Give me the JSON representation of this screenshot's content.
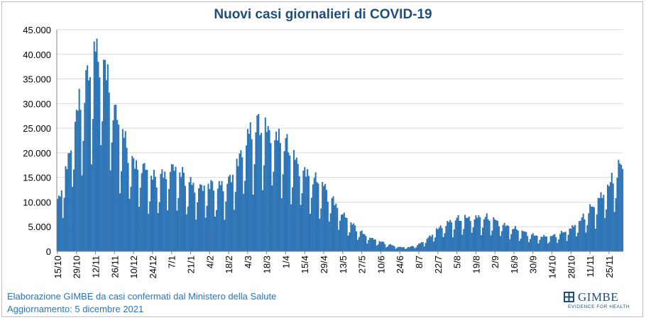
{
  "chart_data": {
    "type": "bar",
    "title": "Nuovi casi giornalieri di COVID-19",
    "xlabel": "",
    "ylabel": "",
    "ylim": [
      0,
      45000
    ],
    "yticks": [
      "0",
      "5.000",
      "10.000",
      "15.000",
      "20.000",
      "25.000",
      "30.000",
      "35.000",
      "40.000",
      "45.000"
    ],
    "xticks": [
      "15/10",
      "29/10",
      "12/11",
      "26/11",
      "10/12",
      "24/12",
      "7/1",
      "21/1",
      "4/2",
      "18/2",
      "4/3",
      "18/3",
      "1/4",
      "15/4",
      "29/4",
      "13/5",
      "27/5",
      "10/6",
      "24/6",
      "8/7",
      "22/7",
      "5/8",
      "19/8",
      "2/9",
      "16/9",
      "30/9",
      "14/10",
      "28/10",
      "11/11",
      "25/11"
    ],
    "grid": true,
    "bar_color": "#2e75b6",
    "x_start": "2020-10-15",
    "x_end": "2021-12-05",
    "weekly_anchors": [
      [
        "2020-10-15",
        8800
      ],
      [
        "2020-10-22",
        16000
      ],
      [
        "2020-10-29",
        26000
      ],
      [
        "2020-11-05",
        31000
      ],
      [
        "2020-11-12",
        37500
      ],
      [
        "2020-11-19",
        35000
      ],
      [
        "2020-11-26",
        26000
      ],
      [
        "2020-12-03",
        21000
      ],
      [
        "2020-12-10",
        16500
      ],
      [
        "2020-12-17",
        16000
      ],
      [
        "2020-12-24",
        13500
      ],
      [
        "2020-12-31",
        14000
      ],
      [
        "2021-01-07",
        16000
      ],
      [
        "2021-01-14",
        14500
      ],
      [
        "2021-01-21",
        12500
      ],
      [
        "2021-01-28",
        12000
      ],
      [
        "2021-02-04",
        12500
      ],
      [
        "2021-02-11",
        12000
      ],
      [
        "2021-02-18",
        13000
      ],
      [
        "2021-02-25",
        17000
      ],
      [
        "2021-03-04",
        21500
      ],
      [
        "2021-03-11",
        23500
      ],
      [
        "2021-03-18",
        23000
      ],
      [
        "2021-03-25",
        21500
      ],
      [
        "2021-04-01",
        20000
      ],
      [
        "2021-04-08",
        17000
      ],
      [
        "2021-04-15",
        15000
      ],
      [
        "2021-04-22",
        13500
      ],
      [
        "2021-04-29",
        12000
      ],
      [
        "2021-05-06",
        9500
      ],
      [
        "2021-05-13",
        7000
      ],
      [
        "2021-05-20",
        5000
      ],
      [
        "2021-05-27",
        3500
      ],
      [
        "2021-06-03",
        2500
      ],
      [
        "2021-06-10",
        1800
      ],
      [
        "2021-06-17",
        1200
      ],
      [
        "2021-06-24",
        800
      ],
      [
        "2021-07-01",
        800
      ],
      [
        "2021-07-08",
        1300
      ],
      [
        "2021-07-15",
        2500
      ],
      [
        "2021-07-22",
        4300
      ],
      [
        "2021-07-29",
        5300
      ],
      [
        "2021-08-05",
        6000
      ],
      [
        "2021-08-12",
        6300
      ],
      [
        "2021-08-19",
        6400
      ],
      [
        "2021-08-26",
        6300
      ],
      [
        "2021-09-02",
        5800
      ],
      [
        "2021-09-09",
        5000
      ],
      [
        "2021-09-16",
        4300
      ],
      [
        "2021-09-23",
        3600
      ],
      [
        "2021-09-30",
        3100
      ],
      [
        "2021-10-07",
        2800
      ],
      [
        "2021-10-14",
        2800
      ],
      [
        "2021-10-21",
        3400
      ],
      [
        "2021-10-28",
        4400
      ],
      [
        "2021-11-04",
        5800
      ],
      [
        "2021-11-11",
        7800
      ],
      [
        "2021-11-18",
        10000
      ],
      [
        "2021-11-25",
        12500
      ],
      [
        "2021-12-02",
        15500
      ],
      [
        "2021-12-05",
        16000
      ]
    ],
    "weekday_factors": [
      0.55,
      0.75,
      1.08,
      1.12,
      1.13,
      1.1,
      1.02
    ]
  },
  "footer": {
    "line1": "Elaborazione GIMBE da casi confermati dal Ministero della Salute",
    "line2": "Aggiornamento: 5 dicembre 2021"
  },
  "logo": {
    "name": "GIMBE",
    "tagline": "EVIDENCE FOR HEALTH",
    "color": "#1f4e79"
  }
}
